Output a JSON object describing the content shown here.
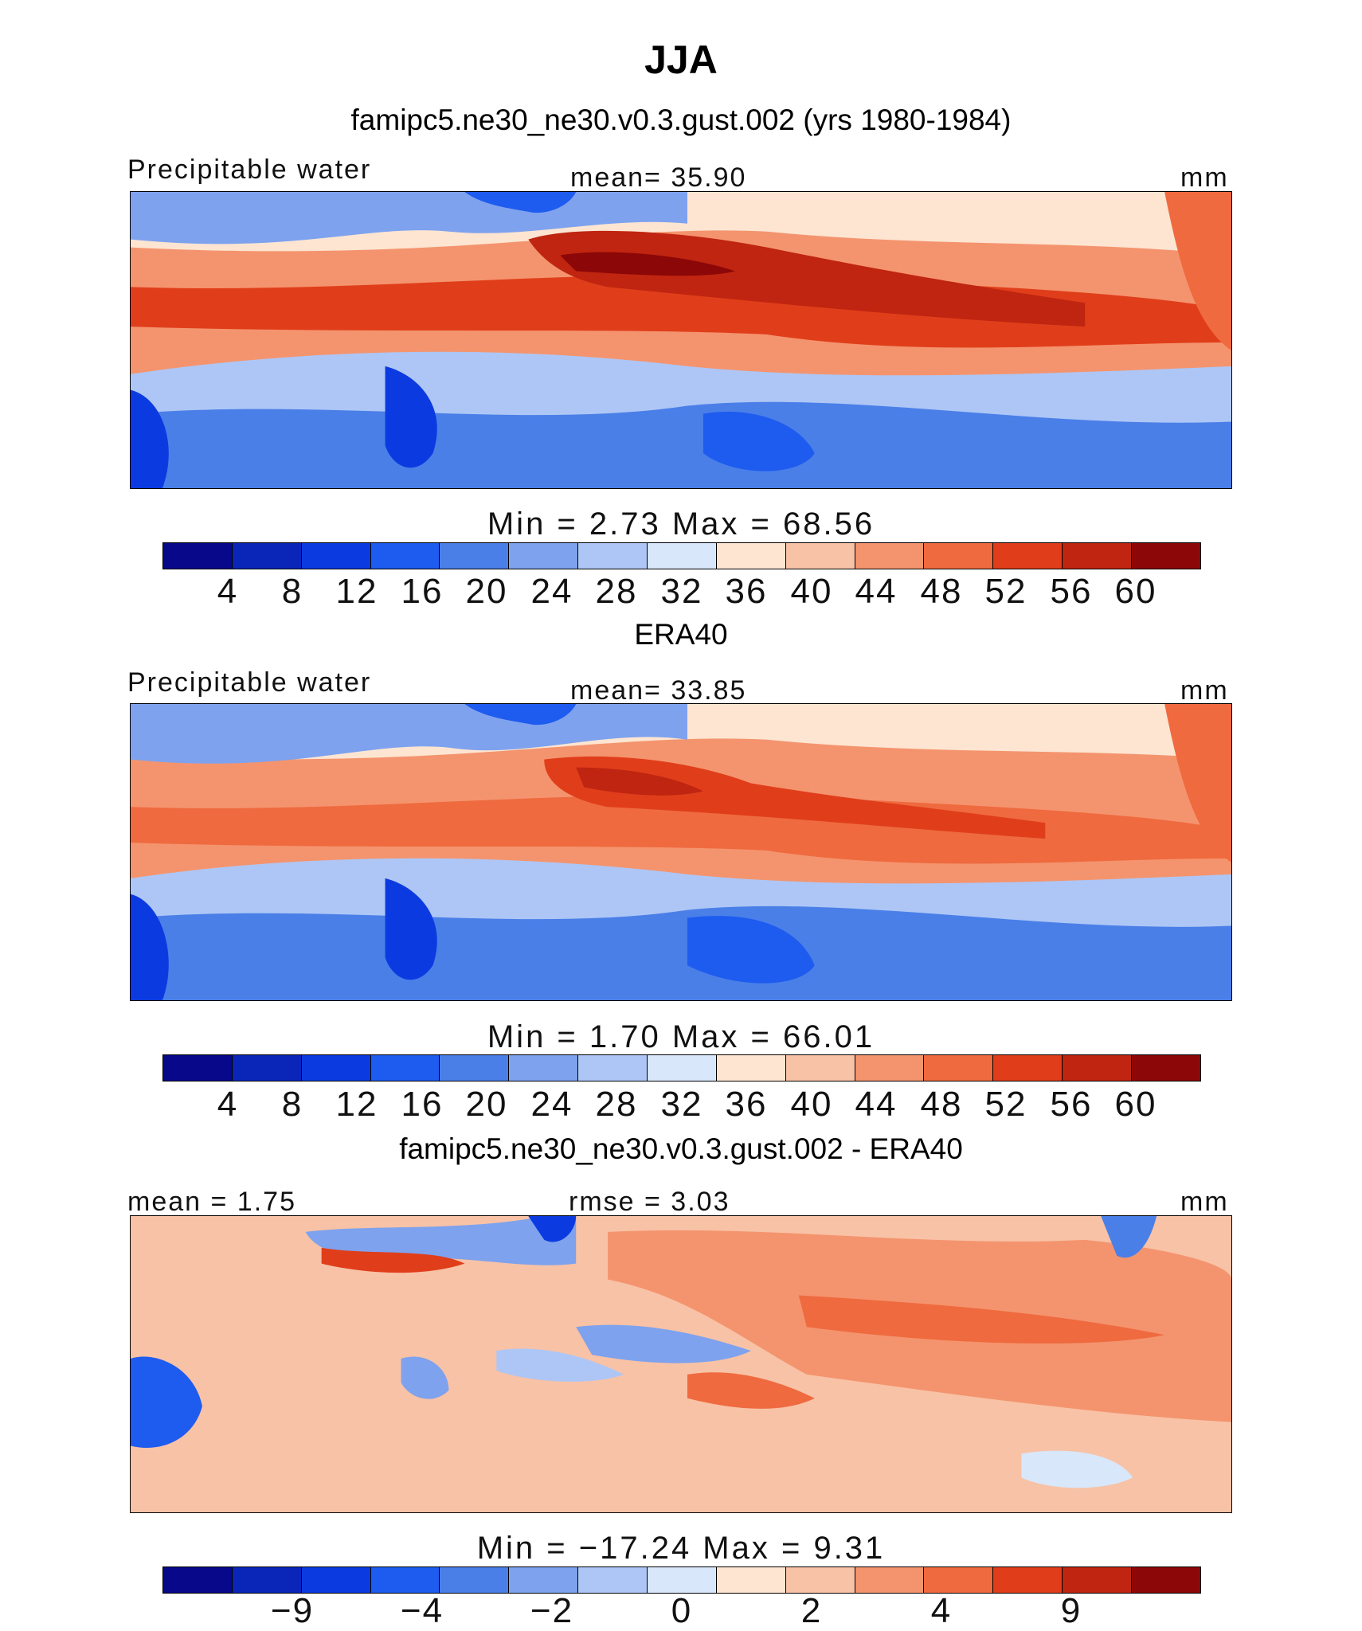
{
  "main_title": "JJA",
  "panels": [
    {
      "title": "famipc5.ne30_ne30.v0.3.gust.002 (yrs 1980-1984)",
      "left_label": "Precipitable water",
      "center_label": "mean=   35.90",
      "units": "mm",
      "minmax": "Min  =    2.73  Max  =   68.56",
      "ticks": [
        "4",
        "8",
        "12",
        "16",
        "20",
        "24",
        "28",
        "32",
        "36",
        "40",
        "44",
        "48",
        "52",
        "56",
        "60"
      ]
    },
    {
      "title": "ERA40",
      "left_label": "Precipitable water",
      "center_label": "mean=   33.85",
      "units": "mm",
      "minmax": "Min  =    1.70  Max  =   66.01",
      "ticks": [
        "4",
        "8",
        "12",
        "16",
        "20",
        "24",
        "28",
        "32",
        "36",
        "40",
        "44",
        "48",
        "52",
        "56",
        "60"
      ]
    },
    {
      "title": "famipc5.ne30_ne30.v0.3.gust.002 - ERA40",
      "left_label": "mean =    1.75",
      "center_label": "rmse =    3.03",
      "units": "mm",
      "minmax": "Min  = −17.24  Max  =    9.31",
      "ticks": [
        "−9",
        "−4",
        "−2",
        "0",
        "2",
        "4",
        "9"
      ]
    }
  ],
  "colorbar_colors": [
    "#08088a",
    "#0a26b8",
    "#0b3be0",
    "#1e5bef",
    "#4a7fe8",
    "#7ea2ee",
    "#aec6f5",
    "#d8e7fa",
    "#fde5d2",
    "#f8c2a6",
    "#f4946e",
    "#ef6a3f",
    "#e03e1b",
    "#bf2510",
    "#8c0707"
  ]
}
